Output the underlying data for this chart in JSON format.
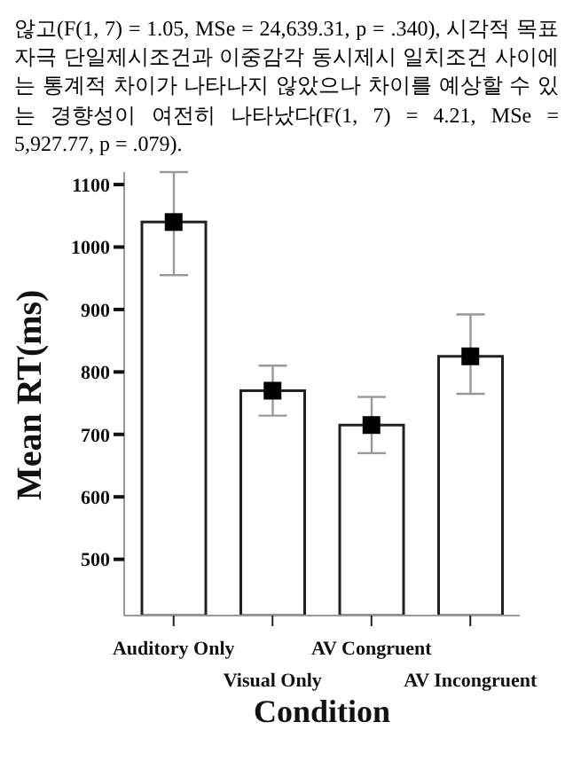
{
  "chart_data": {
    "type": "bar",
    "annotations": [
      "않고(F(1, 7) = 1.05, MSe = 24,639.31, p = .340), 시각적 목표자극 단일제시조건과 이중감각 동시제시 일치조건 사이에는 통계적 차이가 나타나지 않았으나 차이를 예상할 수 있는 경향성이 여전히 나타났다(F(1, 7) = 4.21, MSe = 5,927.77, p = .079)."
    ],
    "xlabel": "Condition",
    "ylabel": "Mean RT(ms)",
    "categories": [
      "Auditory Only",
      "Visual Only",
      "AV Congruent",
      "AV Incongruent"
    ],
    "series": [
      {
        "color": "#ffffff",
        "values": [
          1040,
          770,
          715,
          825
        ],
        "errors": [
          [
            955,
            1120
          ],
          [
            730,
            810
          ],
          [
            670,
            760
          ],
          [
            765,
            892
          ]
        ]
      },
      {
        "type": "scatter",
        "color": "#000000",
        "marker": "square",
        "x": [
          "Auditory Only",
          "Visual Only",
          "AV Congruent",
          "AV Incongruent"
        ],
        "values": [
          1040,
          770,
          715,
          825
        ]
      }
    ],
    "ylim": [
      410,
      1120
    ],
    "yticks": [
      500,
      600,
      700,
      800,
      900,
      1000,
      1100
    ],
    "grid": false
  }
}
